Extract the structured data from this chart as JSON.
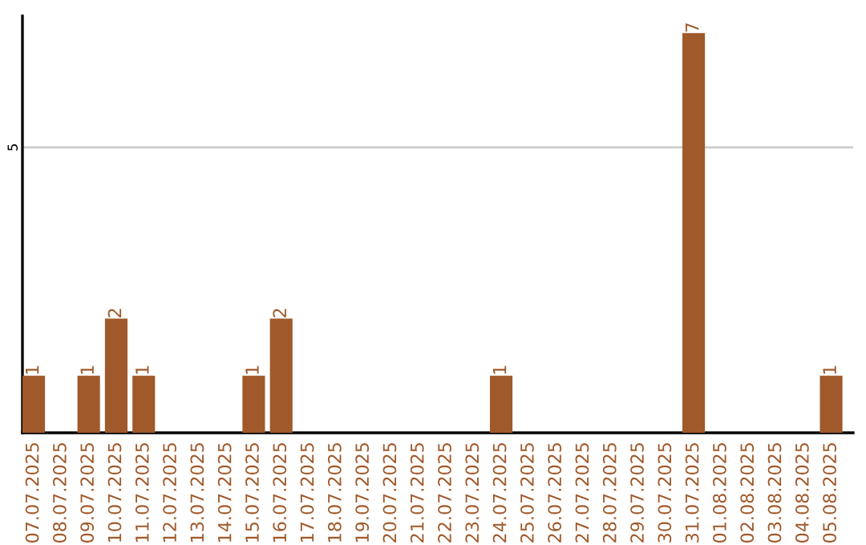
{
  "chart_data": {
    "type": "bar",
    "categories": [
      "07.07.2025",
      "08.07.2025",
      "09.07.2025",
      "10.07.2025",
      "11.07.2025",
      "12.07.2025",
      "13.07.2025",
      "14.07.2025",
      "15.07.2025",
      "16.07.2025",
      "17.07.2025",
      "18.07.2025",
      "19.07.2025",
      "20.07.2025",
      "21.07.2025",
      "22.07.2025",
      "23.07.2025",
      "24.07.2025",
      "25.07.2025",
      "26.07.2025",
      "27.07.2025",
      "28.07.2025",
      "29.07.2025",
      "30.07.2025",
      "31.07.2025",
      "01.08.2025",
      "02.08.2025",
      "03.08.2025",
      "04.08.2025",
      "05.08.2025"
    ],
    "values": [
      1,
      0,
      1,
      2,
      1,
      0,
      0,
      0,
      1,
      2,
      0,
      0,
      0,
      0,
      0,
      0,
      0,
      1,
      0,
      0,
      0,
      0,
      0,
      0,
      7,
      0,
      0,
      0,
      0,
      1
    ],
    "value_labels": [
      "1",
      null,
      "1",
      "2",
      "1",
      null,
      null,
      null,
      "1",
      "2",
      null,
      null,
      null,
      null,
      null,
      null,
      null,
      "1",
      null,
      null,
      null,
      null,
      null,
      null,
      "7",
      null,
      null,
      null,
      null,
      "1"
    ],
    "color": "#a0592a",
    "ylim": [
      0,
      7.3
    ],
    "yticks": [
      5
    ],
    "grid": "y"
  }
}
